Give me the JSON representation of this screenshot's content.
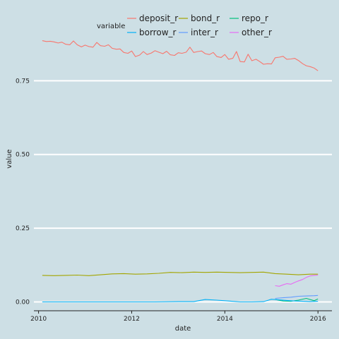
{
  "chart_data": {
    "type": "line",
    "title": "",
    "xlabel": "date",
    "ylabel": "value",
    "xlim": [
      2009.9,
      2016.3
    ],
    "ylim": [
      -0.03,
      1.0
    ],
    "x_ticks": [
      2010,
      2012,
      2014,
      2016
    ],
    "x_tick_labels": [
      "2010",
      "2012",
      "2014",
      "2016"
    ],
    "y_ticks": [
      0,
      0.25,
      0.5,
      0.75
    ],
    "y_tick_labels": [
      "0.00",
      "0.25",
      "0.50",
      "0.75"
    ],
    "grid": "horizontal major lines (white)",
    "legend": {
      "title": "variable",
      "position": "top"
    },
    "series": [
      {
        "name": "deposit_r",
        "color": "#f8766d",
        "x": [
          2010.08,
          2010.17,
          2010.25,
          2010.33,
          2010.42,
          2010.5,
          2010.58,
          2010.67,
          2010.75,
          2010.83,
          2010.92,
          2011.0,
          2011.08,
          2011.17,
          2011.25,
          2011.33,
          2011.42,
          2011.5,
          2011.58,
          2011.67,
          2011.75,
          2011.83,
          2011.92,
          2012.0,
          2012.08,
          2012.17,
          2012.25,
          2012.33,
          2012.42,
          2012.5,
          2012.58,
          2012.67,
          2012.75,
          2012.83,
          2012.92,
          2013.0,
          2013.08,
          2013.17,
          2013.25,
          2013.33,
          2013.42,
          2013.5,
          2013.58,
          2013.67,
          2013.75,
          2013.83,
          2013.92,
          2014.0,
          2014.08,
          2014.17,
          2014.25,
          2014.33,
          2014.42,
          2014.5,
          2014.58,
          2014.67,
          2014.75,
          2014.83,
          2014.92,
          2015.0,
          2015.08,
          2015.17,
          2015.25,
          2015.33,
          2015.42,
          2015.5,
          2015.58,
          2015.67,
          2015.75,
          2015.83,
          2015.92,
          2016.0
        ],
        "values": [
          0.886,
          0.883,
          0.884,
          0.882,
          0.878,
          0.881,
          0.874,
          0.872,
          0.885,
          0.872,
          0.865,
          0.871,
          0.866,
          0.864,
          0.88,
          0.869,
          0.867,
          0.872,
          0.86,
          0.857,
          0.858,
          0.846,
          0.843,
          0.851,
          0.832,
          0.837,
          0.849,
          0.839,
          0.844,
          0.852,
          0.847,
          0.842,
          0.85,
          0.838,
          0.836,
          0.845,
          0.843,
          0.847,
          0.864,
          0.846,
          0.849,
          0.851,
          0.842,
          0.839,
          0.846,
          0.832,
          0.829,
          0.839,
          0.823,
          0.826,
          0.849,
          0.815,
          0.814,
          0.84,
          0.818,
          0.823,
          0.815,
          0.806,
          0.808,
          0.807,
          0.828,
          0.83,
          0.833,
          0.823,
          0.824,
          0.826,
          0.819,
          0.808,
          0.801,
          0.798,
          0.793,
          0.784
        ]
      },
      {
        "name": "bond_r",
        "color": "#a3a500",
        "x": [
          2010.08,
          2010.33,
          2010.58,
          2010.83,
          2011.08,
          2011.33,
          2011.58,
          2011.83,
          2012.08,
          2012.33,
          2012.58,
          2012.83,
          2013.08,
          2013.33,
          2013.58,
          2013.83,
          2014.08,
          2014.33,
          2014.58,
          2014.83,
          2015.08,
          2015.33,
          2015.58,
          2015.83,
          2016.0
        ],
        "values": [
          0.09,
          0.089,
          0.09,
          0.091,
          0.089,
          0.092,
          0.095,
          0.096,
          0.094,
          0.095,
          0.097,
          0.1,
          0.099,
          0.101,
          0.1,
          0.101,
          0.1,
          0.099,
          0.1,
          0.101,
          0.096,
          0.094,
          0.092,
          0.094,
          0.094
        ]
      },
      {
        "name": "repo_r",
        "color": "#00bf7d",
        "x": [
          2015.08,
          2015.25,
          2015.42,
          2015.58,
          2015.75,
          2015.92,
          2016.0
        ],
        "values": [
          0.008,
          0.003,
          0.002,
          0.006,
          0.012,
          0.004,
          0.01
        ]
      },
      {
        "name": "borrow_r",
        "color": "#00b0f6",
        "x": [
          2010.08,
          2010.5,
          2011.0,
          2011.5,
          2012.0,
          2012.5,
          2013.0,
          2013.33,
          2013.58,
          2013.83,
          2014.08,
          2014.33,
          2014.58,
          2014.83,
          2015.0,
          2015.17,
          2015.33,
          2015.5,
          2015.67,
          2015.83,
          2016.0
        ],
        "values": [
          0.0,
          0.0,
          0.0,
          0.0,
          0.0,
          0.0,
          0.001,
          0.001,
          0.008,
          0.006,
          0.003,
          0.0,
          0.0,
          0.001,
          0.009,
          0.007,
          0.005,
          0.003,
          0.002,
          0.001,
          0.002
        ]
      },
      {
        "name": "inter_r",
        "color": "#619cff",
        "x": [
          2015.08,
          2015.25,
          2015.42,
          2015.58,
          2015.75,
          2015.92,
          2016.0
        ],
        "values": [
          0.012,
          0.014,
          0.016,
          0.019,
          0.02,
          0.021,
          0.022
        ]
      },
      {
        "name": "other_r",
        "color": "#e76bf3",
        "x": [
          2015.08,
          2015.17,
          2015.25,
          2015.33,
          2015.42,
          2015.5,
          2015.58,
          2015.67,
          2015.75,
          2015.83,
          2015.92,
          2016.0
        ],
        "values": [
          0.055,
          0.053,
          0.058,
          0.062,
          0.06,
          0.066,
          0.071,
          0.076,
          0.083,
          0.088,
          0.09,
          0.091
        ]
      }
    ]
  }
}
